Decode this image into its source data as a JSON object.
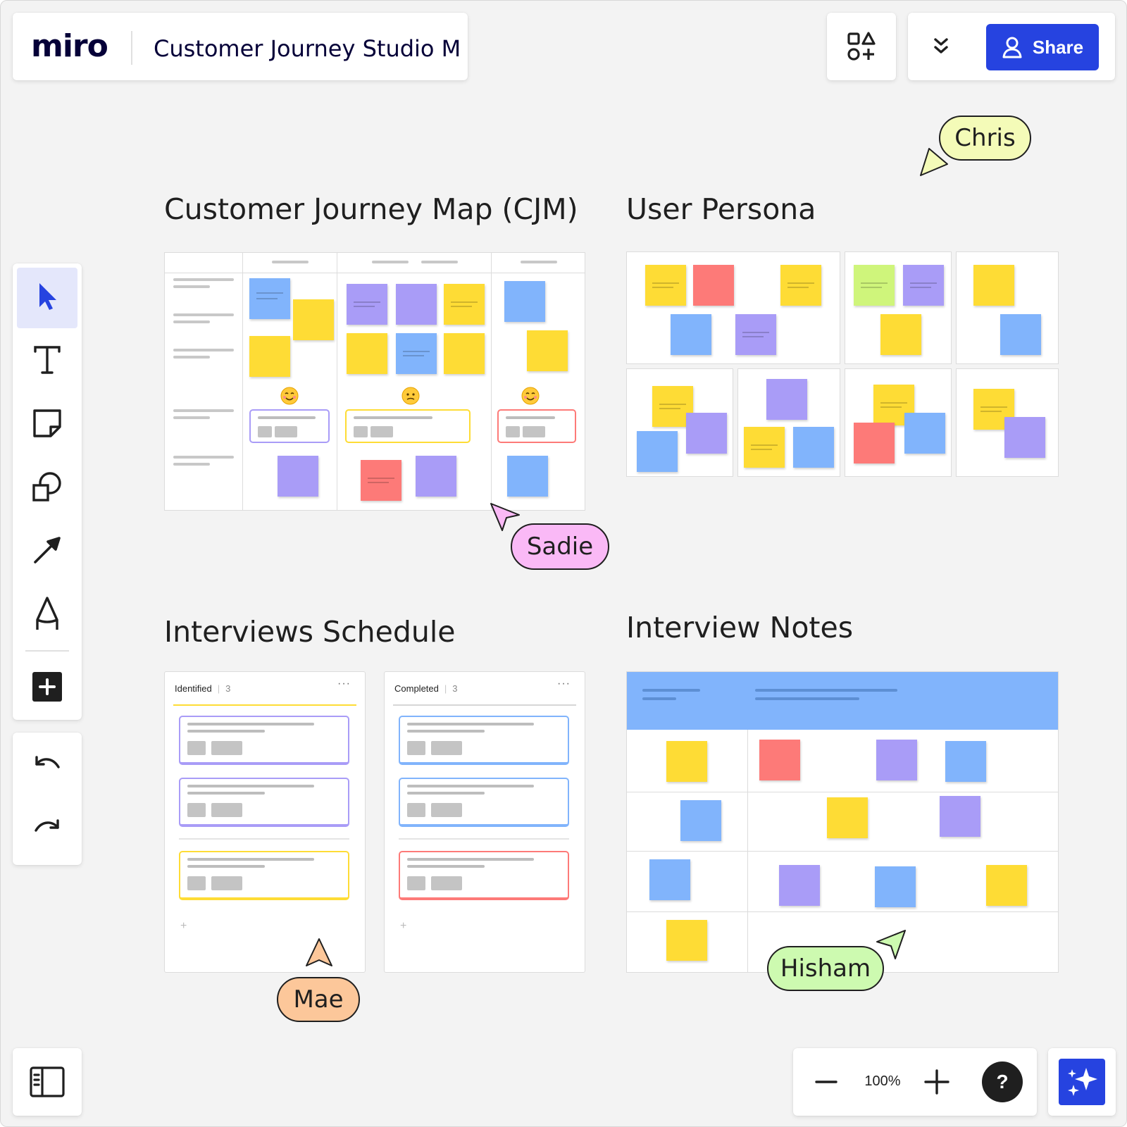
{
  "topbar": {
    "logo": "miro",
    "board_title": "Customer Journey Studio M",
    "share_label": "Share"
  },
  "frames": {
    "cjm": {
      "title": "Customer Journey Map (CJM)"
    },
    "persona": {
      "title": "User Persona"
    },
    "schedule": {
      "title": "Interviews Schedule",
      "columns": [
        {
          "name": "Identified",
          "count": "3",
          "more": "···",
          "add": "+"
        },
        {
          "name": "Completed",
          "count": "3",
          "more": "···",
          "add": "+"
        }
      ]
    },
    "notes": {
      "title": "Interview Notes"
    }
  },
  "cursors": {
    "chris": {
      "name": "Chris",
      "color": "#f4fbb8"
    },
    "sadie": {
      "name": "Sadie",
      "color": "#fab9f6"
    },
    "mae": {
      "name": "Mae",
      "color": "#fcc79a"
    },
    "hisham": {
      "name": "Hisham",
      "color": "#cdfab0"
    }
  },
  "toolbar": {
    "tools": [
      "select-icon",
      "text-icon",
      "sticky-note-icon",
      "shapes-icon",
      "arrow-icon",
      "pen-icon",
      "add-icon"
    ],
    "undo": "undo-icon",
    "redo": "redo-icon"
  },
  "zoom": {
    "level": "100%",
    "help": "?"
  },
  "colors": {
    "accent": "#2643e0",
    "sticky_yellow": "#fedc35",
    "sticky_blue": "#81b4fc",
    "sticky_purple": "#a99cf7",
    "sticky_red": "#fd7a78",
    "sticky_green": "#cff57b"
  }
}
